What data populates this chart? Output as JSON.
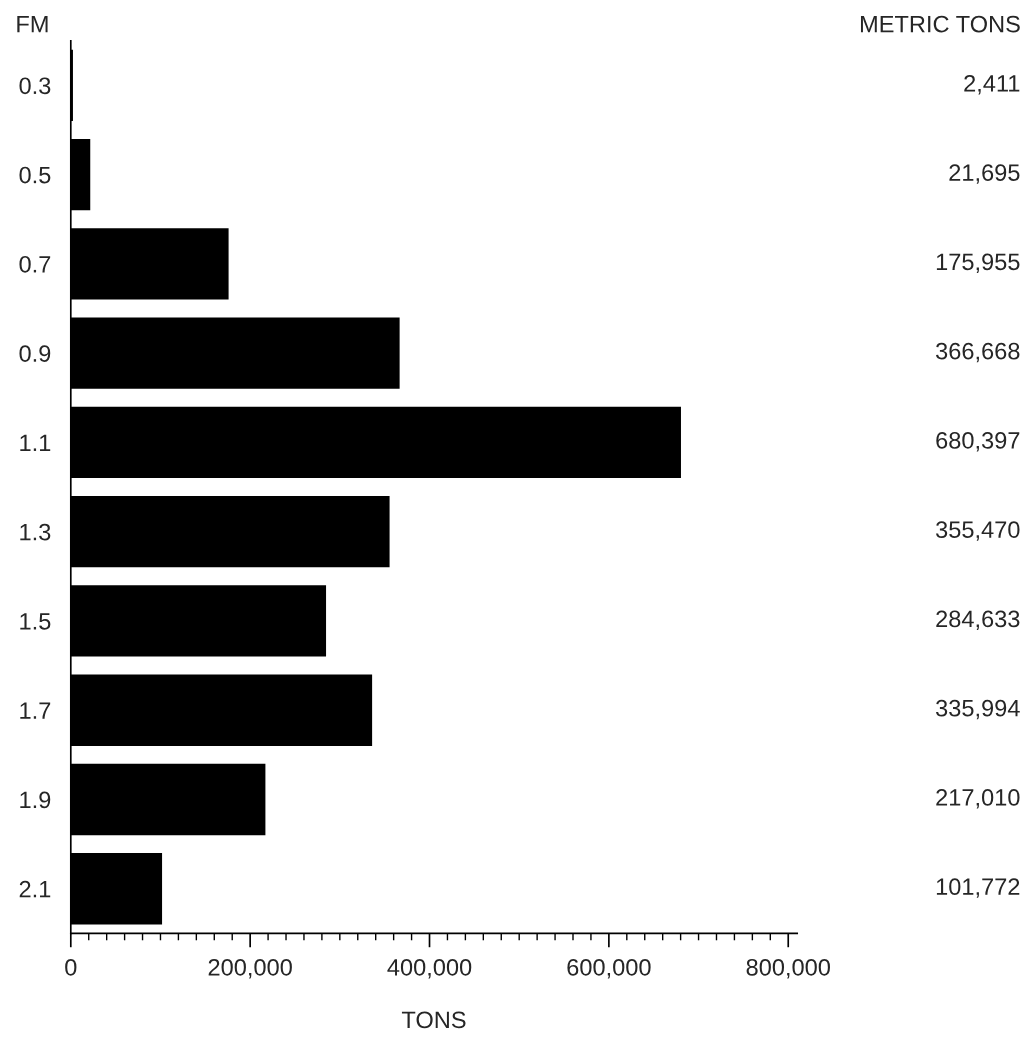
{
  "chart_data": {
    "type": "bar",
    "orientation": "horizontal",
    "ylabel": "FM",
    "xlabel": "TONS",
    "annotations": [
      "METRIC TONS"
    ],
    "categories": [
      "0.3",
      "0.5",
      "0.7",
      "0.9",
      "1.1",
      "1.3",
      "1.5",
      "1.7",
      "1.9",
      "2.1"
    ],
    "values": [
      2411,
      21695,
      175955,
      366668,
      680397,
      355470,
      284633,
      335994,
      217010,
      101772
    ],
    "value_labels": [
      "2,411",
      "21,695",
      "175,955",
      "366,668",
      "680,397",
      "355,470",
      "284,633",
      "335,994",
      "217,010",
      "101,772"
    ],
    "color": "#000000",
    "xlim": [
      0,
      810000
    ],
    "xticks": [
      {
        "value": 0,
        "label": "0"
      },
      {
        "value": 20000,
        "label": null
      },
      {
        "value": 40000,
        "label": null
      },
      {
        "value": 60000,
        "label": null
      },
      {
        "value": 80000,
        "label": null
      },
      {
        "value": 100000,
        "label": null
      },
      {
        "value": 120000,
        "label": null
      },
      {
        "value": 140000,
        "label": null
      },
      {
        "value": 160000,
        "label": null
      },
      {
        "value": 180000,
        "label": null
      },
      {
        "value": 200000,
        "label": "200,000"
      },
      {
        "value": 220000,
        "label": null
      },
      {
        "value": 240000,
        "label": null
      },
      {
        "value": 260000,
        "label": null
      },
      {
        "value": 280000,
        "label": null
      },
      {
        "value": 300000,
        "label": null
      },
      {
        "value": 320000,
        "label": null
      },
      {
        "value": 340000,
        "label": null
      },
      {
        "value": 360000,
        "label": null
      },
      {
        "value": 380000,
        "label": null
      },
      {
        "value": 400000,
        "label": "400,000"
      },
      {
        "value": 420000,
        "label": null
      },
      {
        "value": 440000,
        "label": null
      },
      {
        "value": 460000,
        "label": null
      },
      {
        "value": 480000,
        "label": null
      },
      {
        "value": 500000,
        "label": null
      },
      {
        "value": 520000,
        "label": null
      },
      {
        "value": 540000,
        "label": null
      },
      {
        "value": 560000,
        "label": null
      },
      {
        "value": 580000,
        "label": null
      },
      {
        "value": 600000,
        "label": "600,000"
      },
      {
        "value": 620000,
        "label": null
      },
      {
        "value": 640000,
        "label": null
      },
      {
        "value": 660000,
        "label": null
      },
      {
        "value": 680000,
        "label": null
      },
      {
        "value": 700000,
        "label": null
      },
      {
        "value": 720000,
        "label": null
      },
      {
        "value": 740000,
        "label": null
      },
      {
        "value": 760000,
        "label": null
      },
      {
        "value": 780000,
        "label": null
      },
      {
        "value": 800000,
        "label": "800,000"
      }
    ],
    "grid": false,
    "legend": false
  }
}
